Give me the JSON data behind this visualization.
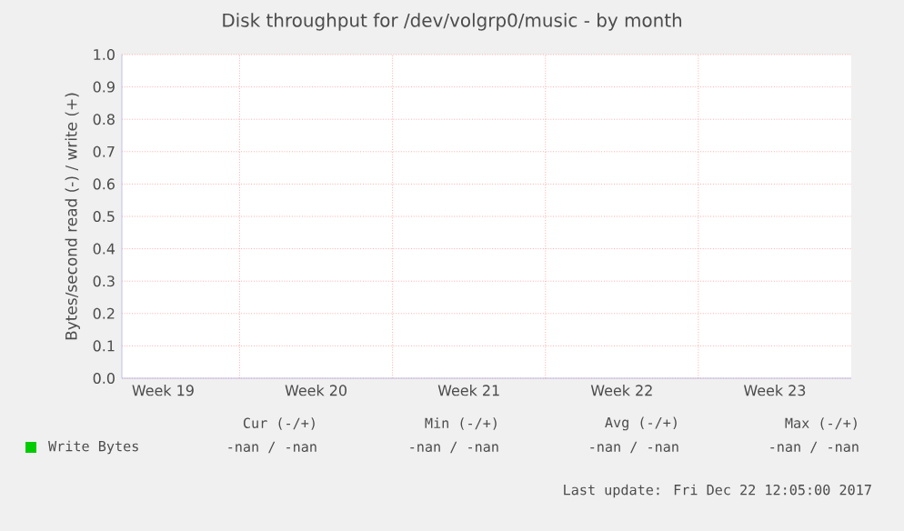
{
  "chart_data": {
    "type": "line",
    "title": "Disk throughput for /dev/volgrp0/music - by month",
    "ylabel": "Bytes/second read (-) / write (+)",
    "categories": [
      "Week 19",
      "Week 20",
      "Week 21",
      "Week 22",
      "Week 23"
    ],
    "series": [
      {
        "name": "Write Bytes",
        "color": "#00cc00",
        "values": [
          null,
          null,
          null,
          null,
          null
        ]
      }
    ],
    "ylim": [
      0,
      1
    ],
    "yticks": [
      {
        "value": 0,
        "label": "0.0"
      },
      {
        "value": 0.1,
        "label": "0.1"
      },
      {
        "value": 0.2,
        "label": "0.2"
      },
      {
        "value": 0.3,
        "label": "0.3"
      },
      {
        "value": 0.4,
        "label": "0.4"
      },
      {
        "value": 0.5,
        "label": "0.5"
      },
      {
        "value": 0.6,
        "label": "0.6"
      },
      {
        "value": 0.7,
        "label": "0.7"
      },
      {
        "value": 0.8,
        "label": "0.8"
      },
      {
        "value": 0.9,
        "label": "0.9"
      },
      {
        "value": 1,
        "label": "1.0"
      }
    ],
    "grid": true,
    "legend": "bottom left",
    "annotations": [
      "Cur (-/+)",
      "Min (-/+)",
      "Avg (-/+)",
      "Max (-/+)",
      "-nan /  -nan",
      "-nan /  -nan",
      "-nan /  -nan",
      "-nan /  -nan",
      "Last update: Fri Dec 22 12:05:00 2017"
    ]
  }
}
